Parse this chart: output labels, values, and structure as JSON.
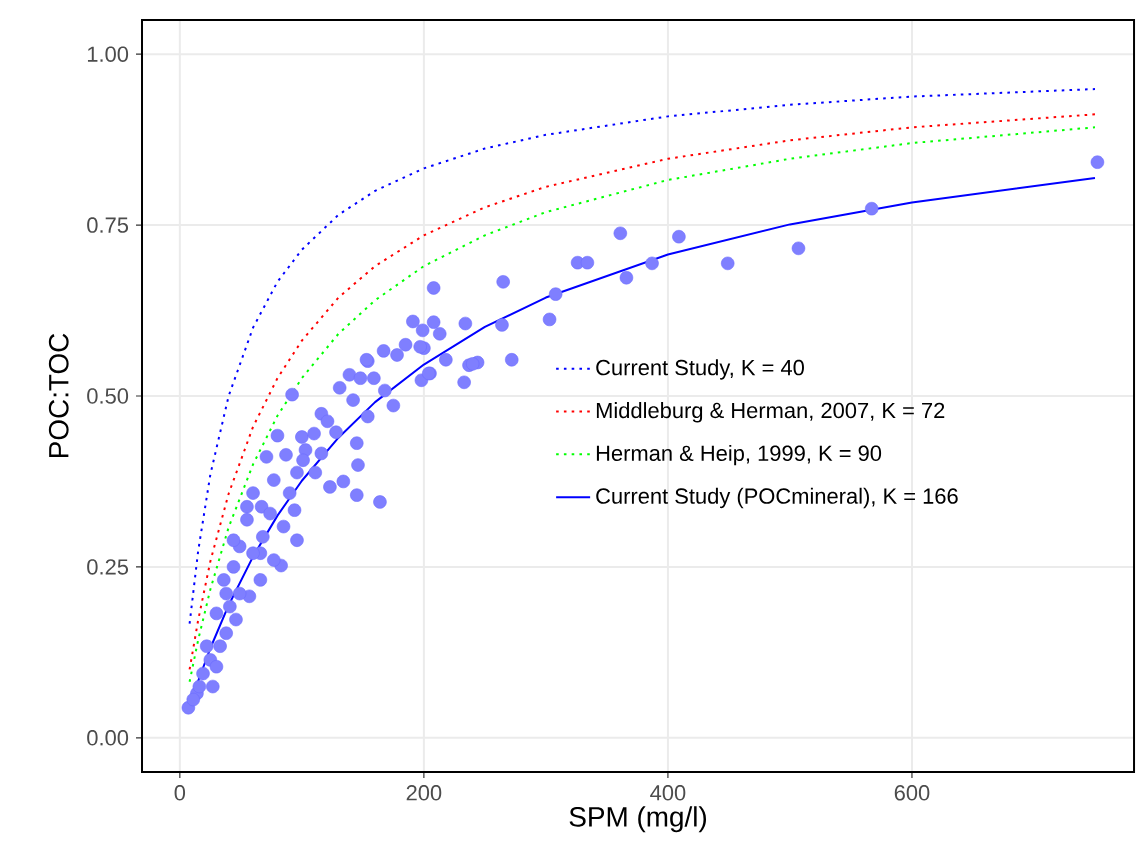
{
  "chart_data": {
    "type": "scatter",
    "xlabel": "SPM (mg/l)",
    "ylabel": "POC:TOC",
    "xlim": [
      -31,
      782
    ],
    "ylim": [
      -0.05,
      1.05
    ],
    "xticks": [
      0,
      200,
      400,
      600
    ],
    "yticks": [
      {
        "value": 0,
        "label": "0.00"
      },
      {
        "value": 0.25,
        "label": "0.25"
      },
      {
        "value": 0.5,
        "label": "0.50"
      },
      {
        "value": 0.75,
        "label": "0.75"
      },
      {
        "value": 1,
        "label": "1.00"
      }
    ],
    "grid": true,
    "legend": "right",
    "marker": "none",
    "series": [
      {
        "color": "#7f7fff",
        "marker": "circle",
        "x": [
          752,
          567,
          507,
          449,
          409,
          387,
          366,
          361,
          326,
          334,
          308,
          303,
          265,
          264,
          272,
          208,
          234,
          244,
          237,
          233,
          218,
          213,
          208,
          199,
          191,
          185,
          178,
          167,
          200,
          205,
          198,
          164,
          175,
          168,
          154,
          145,
          134,
          92,
          153,
          139,
          148,
          159,
          197,
          204,
          116,
          131,
          142,
          154,
          100,
          110,
          121,
          80,
          71,
          87,
          103,
          145,
          146,
          123,
          111,
          96,
          77,
          60,
          67,
          94,
          96,
          85,
          68,
          83,
          55,
          49,
          66,
          44,
          38,
          57,
          46,
          30,
          33,
          22,
          19,
          14,
          7,
          27,
          38,
          49,
          36,
          77,
          66,
          74,
          55,
          44,
          25,
          16,
          11,
          30,
          41,
          60,
          90,
          101,
          116,
          128,
          240
        ],
        "values": [
          0.842,
          0.774,
          0.716,
          0.694,
          0.733,
          0.694,
          0.673,
          0.738,
          0.695,
          0.695,
          0.649,
          0.612,
          0.667,
          0.604,
          0.553,
          0.658,
          0.606,
          0.549,
          0.545,
          0.52,
          0.553,
          0.591,
          0.608,
          0.596,
          0.609,
          0.575,
          0.56,
          0.566,
          0.57,
          0.533,
          0.523,
          0.345,
          0.486,
          0.508,
          0.551,
          0.355,
          0.375,
          0.502,
          0.553,
          0.531,
          0.526,
          0.526,
          0.572,
          0.533,
          0.474,
          0.512,
          0.494,
          0.47,
          0.44,
          0.445,
          0.463,
          0.442,
          0.411,
          0.414,
          0.421,
          0.431,
          0.399,
          0.367,
          0.388,
          0.388,
          0.377,
          0.358,
          0.338,
          0.333,
          0.289,
          0.309,
          0.294,
          0.252,
          0.319,
          0.28,
          0.231,
          0.25,
          0.211,
          0.207,
          0.173,
          0.182,
          0.134,
          0.134,
          0.094,
          0.065,
          0.044,
          0.075,
          0.153,
          0.211,
          0.231,
          0.26,
          0.27,
          0.328,
          0.338,
          0.289,
          0.114,
          0.075,
          0.056,
          0.104,
          0.192,
          0.27,
          0.358,
          0.406,
          0.416,
          0.447,
          0.547
        ]
      },
      {
        "type": "line",
        "name": "Current Study, K = 40",
        "color": "#0000ff",
        "line_style": "dotted",
        "x": [
          8,
          15,
          25,
          40,
          60,
          80,
          100,
          130,
          160,
          200,
          250,
          300,
          400,
          500,
          600,
          750
        ],
        "values": [
          0.167,
          0.273,
          0.385,
          0.5,
          0.6,
          0.667,
          0.714,
          0.765,
          0.8,
          0.833,
          0.862,
          0.882,
          0.909,
          0.926,
          0.938,
          0.949
        ]
      },
      {
        "type": "line",
        "name": "Middleburg & Herman, 2007, K = 72",
        "color": "#ff0000",
        "line_style": "dotted",
        "x": [
          8,
          15,
          25,
          40,
          60,
          80,
          100,
          130,
          160,
          200,
          250,
          300,
          400,
          500,
          600,
          750
        ],
        "values": [
          0.1,
          0.172,
          0.258,
          0.357,
          0.455,
          0.526,
          0.581,
          0.644,
          0.69,
          0.735,
          0.776,
          0.806,
          0.847,
          0.874,
          0.893,
          0.912
        ]
      },
      {
        "type": "line",
        "name": "Herman & Heip, 1999, K = 90",
        "color": "#00ff00",
        "line_style": "dotted",
        "x": [
          8,
          15,
          25,
          40,
          60,
          80,
          100,
          130,
          160,
          200,
          250,
          300,
          400,
          500,
          600,
          750
        ],
        "values": [
          0.082,
          0.143,
          0.217,
          0.308,
          0.4,
          0.471,
          0.526,
          0.591,
          0.64,
          0.69,
          0.735,
          0.769,
          0.816,
          0.847,
          0.87,
          0.893
        ]
      },
      {
        "type": "line",
        "name": "Current Study (POCmineral), K = 166",
        "color": "#0000ff",
        "line_style": "solid",
        "x": [
          8,
          15,
          25,
          40,
          60,
          80,
          100,
          130,
          160,
          200,
          250,
          300,
          400,
          500,
          600,
          750
        ],
        "values": [
          0.046,
          0.083,
          0.131,
          0.194,
          0.265,
          0.325,
          0.376,
          0.439,
          0.491,
          0.546,
          0.601,
          0.644,
          0.707,
          0.751,
          0.783,
          0.819
        ]
      }
    ]
  }
}
